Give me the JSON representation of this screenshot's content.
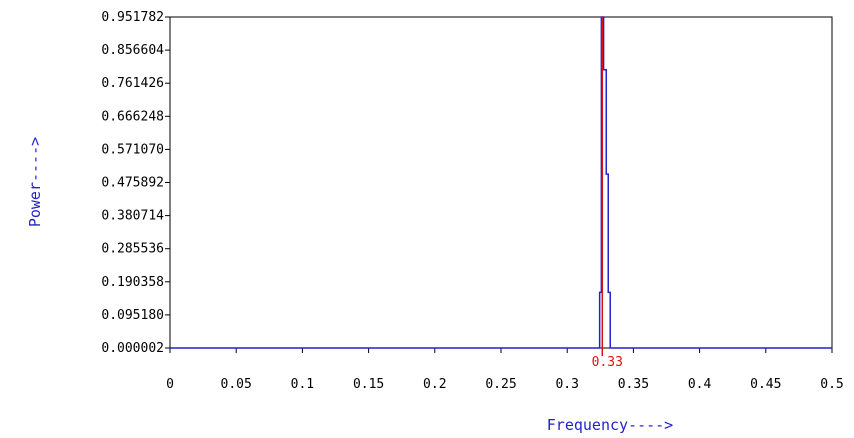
{
  "colors": {
    "axis": "#000000",
    "spectrum": "#2222cc",
    "peak_marker": "#e01010",
    "axis_title": "#2222cc",
    "background": "#ffffff"
  },
  "chart_data": {
    "type": "line",
    "title": "",
    "xlabel": "Frequency---->",
    "ylabel": "Power---->",
    "xlim": [
      0,
      0.5
    ],
    "ylim": [
      2e-06,
      0.951782
    ],
    "x_ticks": [
      "0",
      "0.05",
      "0.1",
      "0.15",
      "0.2",
      "0.25",
      "0.3",
      "0.35",
      "0.4",
      "0.45",
      "0.5"
    ],
    "y_ticks": [
      "0.000002",
      "0.095180",
      "0.190358",
      "0.285536",
      "0.380714",
      "0.475892",
      "0.571070",
      "0.666248",
      "0.761426",
      "0.856604",
      "0.951782"
    ],
    "grid": false,
    "series": [
      {
        "x": [
          0,
          0.3245,
          0.3245,
          0.3258,
          0.3258,
          0.3275,
          0.3275,
          0.3295,
          0.3295,
          0.331,
          0.331,
          0.3325,
          0.3325,
          0.5
        ],
        "values": [
          2e-06,
          2e-06,
          0.16,
          0.16,
          0.951782,
          0.951782,
          0.8,
          0.8,
          0.5,
          0.5,
          0.16,
          0.16,
          2e-06,
          2e-06
        ]
      }
    ],
    "annotations": [
      {
        "text": "0.33",
        "x": 0.3265,
        "type": "peak-marker"
      }
    ]
  }
}
